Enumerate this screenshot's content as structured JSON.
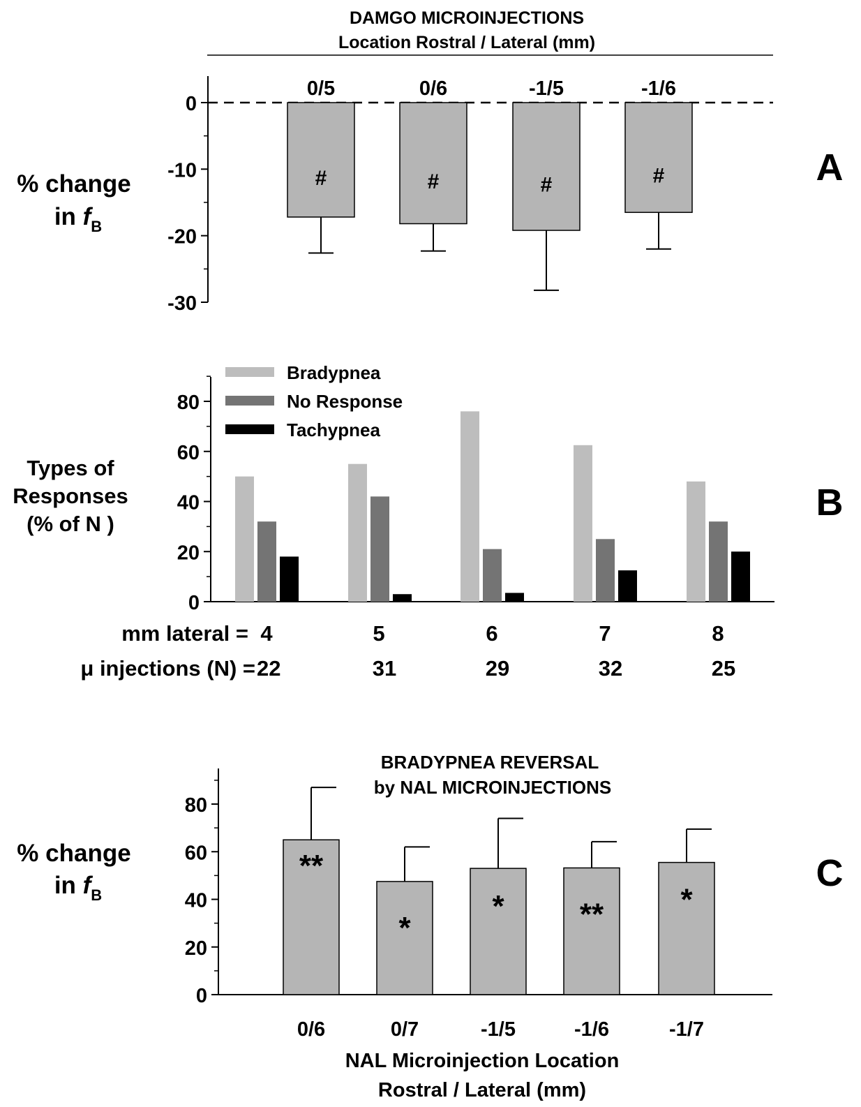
{
  "chart_data": [
    {
      "id": "A",
      "panel_letter": "A",
      "type": "bar",
      "title_lines": [
        "DAMGO MICROINJECTIONS",
        "Location  Rostral  /  Lateral (mm)"
      ],
      "ylabel_line1": "% change",
      "ylabel_line2_prefix": "in ",
      "ylabel_symbol": "f",
      "ylabel_subscript": "B",
      "ylim": [
        -30,
        4
      ],
      "yticks": [
        0,
        -10,
        -20,
        -30
      ],
      "reference_line": 0,
      "categories": [
        "0/5",
        "0/6",
        "-1/5",
        "-1/6"
      ],
      "values": [
        -17.2,
        -18.2,
        -19.2,
        -16.5
      ],
      "error": [
        5.4,
        4.1,
        9.0,
        5.5
      ],
      "annotations": [
        "#",
        "#",
        "#",
        "#"
      ],
      "bar_color": "#b5b5b5"
    },
    {
      "id": "B",
      "panel_letter": "B",
      "type": "bar",
      "ylabel_lines": [
        "Types of",
        "Responses",
        "(% of N )"
      ],
      "ylim": [
        0,
        90
      ],
      "yticks": [
        0,
        20,
        40,
        60,
        80
      ],
      "legend_position": "top-left",
      "series": [
        {
          "name": "Bradypnea",
          "color": "#bdbdbd",
          "values": [
            50,
            55,
            76,
            62.5,
            48
          ]
        },
        {
          "name": "No Response",
          "color": "#747474",
          "values": [
            32,
            42,
            21,
            25,
            32
          ]
        },
        {
          "name": "Tachypnea",
          "color": "#000000",
          "values": [
            18,
            3,
            3.5,
            12.5,
            20
          ]
        }
      ],
      "row1_label": "mm lateral =",
      "row1_values": [
        "4",
        "5",
        "6",
        "7",
        "8"
      ],
      "row2_label": "μ injections (N) =",
      "row2_values": [
        "22",
        "31",
        "29",
        "32",
        "25"
      ]
    },
    {
      "id": "C",
      "panel_letter": "C",
      "type": "bar",
      "title_lines": [
        "BRADYPNEA  REVERSAL",
        "by NAL MICROINJECTIONS"
      ],
      "ylabel_line1": "% change",
      "ylabel_line2_prefix": "in ",
      "ylabel_symbol": "f",
      "ylabel_subscript": "B",
      "ylim": [
        0,
        95
      ],
      "yticks": [
        0,
        20,
        40,
        60,
        80
      ],
      "categories": [
        "0/6",
        "0/7",
        "-1/5",
        "-1/6",
        "-1/7"
      ],
      "values": [
        65,
        47.5,
        53,
        53.2,
        55.5
      ],
      "error": [
        22,
        14.5,
        21,
        11,
        14
      ],
      "annotations": [
        "**",
        "*",
        "*",
        "**",
        "*"
      ],
      "xlabel_lines": [
        "NAL Microinjection Location",
        "Rostral  /  Lateral (mm)"
      ],
      "bar_color": "#b5b5b5"
    }
  ]
}
